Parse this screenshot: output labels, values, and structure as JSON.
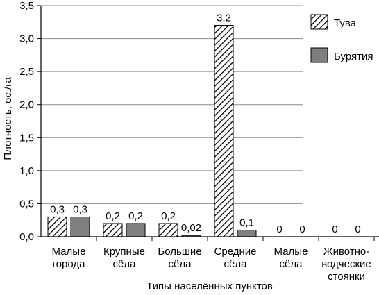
{
  "chart_data": {
    "type": "bar",
    "title": "",
    "ylabel": "Плотность, ос./га",
    "xlabel": "Типы населённых пунктов",
    "ylim": [
      0,
      3.5
    ],
    "yticks": [
      "0,0",
      "0,5",
      "1,0",
      "1,5",
      "2,0",
      "2,5",
      "3,0",
      "3,5"
    ],
    "ytick_values": [
      0,
      0.5,
      1.0,
      1.5,
      2.0,
      2.5,
      3.0,
      3.5
    ],
    "grid": true,
    "legend_position": "top-right",
    "categories": [
      [
        "Малые",
        "города"
      ],
      [
        "Крупные",
        "сёла"
      ],
      [
        "Большие",
        "сёла"
      ],
      [
        "Средние",
        "сёла"
      ],
      [
        "Малые",
        "сёла"
      ],
      [
        "Животно-",
        "водческие",
        "стоянки"
      ]
    ],
    "series": [
      {
        "name": "Тува",
        "pattern": "hatch",
        "values": [
          0.3,
          0.2,
          0.2,
          3.2,
          0,
          0
        ],
        "labels": [
          "0,3",
          "0,2",
          "0,2",
          "3,2",
          "0",
          "0"
        ]
      },
      {
        "name": "Бурятия",
        "color": "#7f7f7f",
        "values": [
          0.3,
          0.2,
          0.02,
          0.1,
          0,
          0
        ],
        "labels": [
          "0,3",
          "0,2",
          "0,02",
          "0,1",
          "0",
          "0"
        ]
      }
    ]
  }
}
